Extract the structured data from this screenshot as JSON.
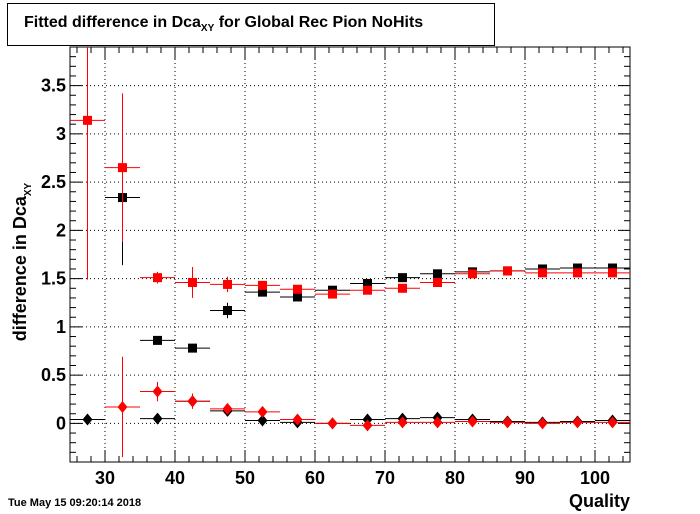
{
  "title": {
    "main": "Fitted difference in Dca",
    "sub": "XY",
    "suffix": "for Global Rec Pion NoHits"
  },
  "timestamp": "Tue May 15 09:20:14 2018",
  "colors": {
    "series_black": "#000000",
    "series_red": "#ff0000",
    "grid": "#000000"
  },
  "chart_data": {
    "type": "scatter",
    "title": "Fitted difference in Dca XY for Global Rec Pion NoHits",
    "xlabel": "Quality",
    "ylabel": "difference in Dca",
    "ylabel_sub": "XY",
    "xlim": [
      25,
      105
    ],
    "ylim": [
      -0.4,
      3.9
    ],
    "x_ticks": [
      30,
      40,
      50,
      60,
      70,
      80,
      90,
      100
    ],
    "y_ticks": [
      0,
      0.5,
      1,
      1.5,
      2,
      2.5,
      3,
      3.5
    ],
    "y_tick_labels": [
      "0",
      "0.5",
      "1",
      "1.5",
      "2",
      "2.5",
      "3",
      "3.5"
    ],
    "grid": true,
    "bin_half_width": 2.5,
    "series": [
      {
        "marker": "square",
        "color": "#000000",
        "x": [
          32.5,
          37.5,
          42.5,
          47.5,
          52.5,
          57.5,
          62.5,
          67.5,
          72.5,
          77.5,
          82.5,
          87.5,
          92.5,
          97.5,
          102.5
        ],
        "y": [
          2.34,
          0.86,
          0.78,
          1.17,
          1.36,
          1.31,
          1.38,
          1.45,
          1.51,
          1.55,
          1.57,
          1.58,
          1.6,
          1.61,
          1.61
        ],
        "yerr": [
          0.7,
          0.04,
          0.03,
          0.08,
          0.03,
          0.03,
          0.03,
          0.03,
          0.03,
          0.03,
          0.02,
          0.02,
          0.02,
          0.02,
          0.02
        ]
      },
      {
        "marker": "square",
        "color": "#ff0000",
        "x": [
          27.5,
          32.5,
          37.5,
          42.5,
          47.5,
          52.5,
          57.5,
          62.5,
          67.5,
          72.5,
          77.5,
          82.5,
          87.5,
          92.5,
          97.5,
          102.5
        ],
        "y": [
          3.14,
          2.65,
          1.51,
          1.46,
          1.44,
          1.43,
          1.39,
          1.34,
          1.38,
          1.4,
          1.46,
          1.55,
          1.58,
          1.56,
          1.56,
          1.56
        ],
        "yerr": [
          1.65,
          0.77,
          0.06,
          0.16,
          0.08,
          0.04,
          0.04,
          0.03,
          0.03,
          0.03,
          0.03,
          0.02,
          0.02,
          0.02,
          0.02,
          0.02
        ]
      },
      {
        "marker": "diamond",
        "color": "#000000",
        "x": [
          27.5,
          37.5,
          42.5,
          47.5,
          52.5,
          57.5,
          62.5,
          67.5,
          72.5,
          77.5,
          82.5,
          87.5,
          92.5,
          97.5,
          102.5
        ],
        "y": [
          0.04,
          0.05,
          0.23,
          0.13,
          0.03,
          0.01,
          0.0,
          0.04,
          0.05,
          0.06,
          0.04,
          0.02,
          0.01,
          0.02,
          0.03
        ],
        "yerr": [
          0.02,
          0.03,
          0.03,
          0.03,
          0.01,
          0.01,
          0.01,
          0.01,
          0.01,
          0.01,
          0.01,
          0.01,
          0.01,
          0.01,
          0.01
        ]
      },
      {
        "marker": "diamond",
        "color": "#ff0000",
        "x": [
          32.5,
          37.5,
          42.5,
          47.5,
          52.5,
          57.5,
          62.5,
          67.5,
          72.5,
          77.5,
          82.5,
          87.5,
          92.5,
          97.5,
          102.5
        ],
        "y": [
          0.17,
          0.33,
          0.23,
          0.15,
          0.12,
          0.04,
          0.0,
          -0.02,
          0.01,
          0.01,
          0.02,
          0.01,
          0.0,
          0.01,
          0.01
        ],
        "yerr": [
          0.52,
          0.1,
          0.08,
          0.03,
          0.02,
          0.01,
          0.01,
          0.01,
          0.01,
          0.01,
          0.01,
          0.01,
          0.01,
          0.01,
          0.01
        ]
      }
    ]
  }
}
